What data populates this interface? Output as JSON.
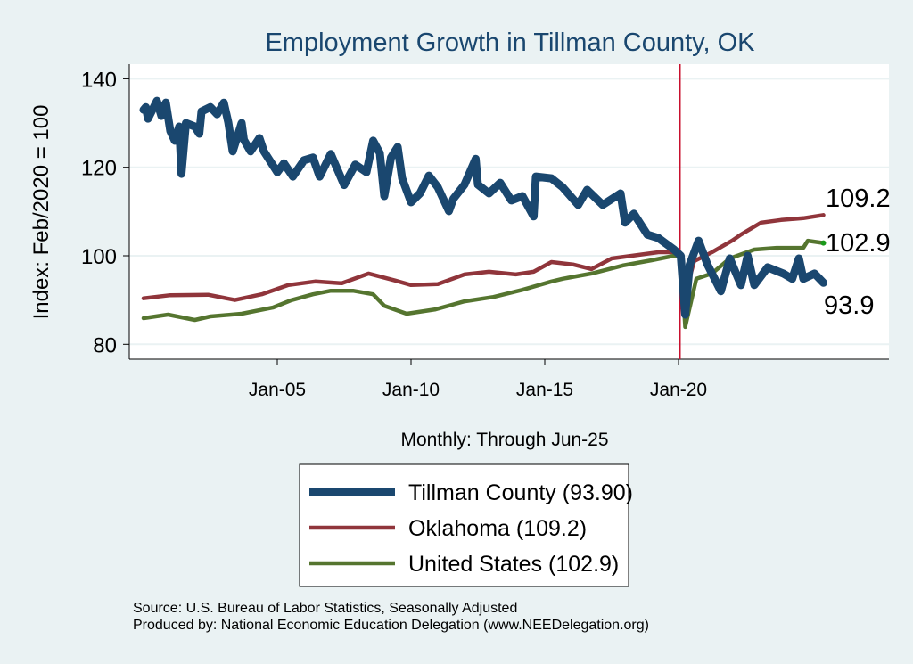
{
  "chart_data": {
    "type": "line",
    "title": "Employment Growth in Tillman  County, OK",
    "xlabel": "Monthly: Through Jun-25",
    "ylabel": "Index: Feb/2020 = 100",
    "ylim": [
      77,
      143
    ],
    "xlim": [
      "1999-06",
      "2028-02"
    ],
    "yticks": [
      80,
      100,
      120,
      140
    ],
    "xticks": [
      {
        "date": "2005-01",
        "label": "Jan-05"
      },
      {
        "date": "2010-01",
        "label": "Jan-10"
      },
      {
        "date": "2015-01",
        "label": "Jan-15"
      },
      {
        "date": "2020-01",
        "label": "Jan-20"
      }
    ],
    "grid": true,
    "reference_line": {
      "date": "2020-02",
      "color": "#c8102e"
    },
    "legend_position": "bottom",
    "series": [
      {
        "name": "Tillman  County (93.90)",
        "end_label": "93.9",
        "color": "#1a476f",
        "points": [
          [
            "2000-01",
            133.0
          ],
          [
            "2000-02",
            133.6
          ],
          [
            "2000-03",
            131.0
          ],
          [
            "2000-07",
            135.0
          ],
          [
            "2000-09",
            131.6
          ],
          [
            "2000-11",
            134.6
          ],
          [
            "2001-01",
            128.2
          ],
          [
            "2001-03",
            126.0
          ],
          [
            "2001-05",
            129.2
          ],
          [
            "2001-06",
            118.5
          ],
          [
            "2001-08",
            130.0
          ],
          [
            "2001-12",
            129.2
          ],
          [
            "2002-02",
            127.6
          ],
          [
            "2002-03",
            132.6
          ],
          [
            "2002-07",
            133.6
          ],
          [
            "2002-10",
            132.0
          ],
          [
            "2003-01",
            134.6
          ],
          [
            "2003-03",
            130.2
          ],
          [
            "2003-05",
            123.6
          ],
          [
            "2003-09",
            130.0
          ],
          [
            "2003-10",
            126.2
          ],
          [
            "2004-01",
            123.6
          ],
          [
            "2004-05",
            126.6
          ],
          [
            "2004-07",
            123.6
          ],
          [
            "2005-01",
            118.9
          ],
          [
            "2005-04",
            120.9
          ],
          [
            "2005-08",
            117.9
          ],
          [
            "2006-01",
            121.6
          ],
          [
            "2006-05",
            122.2
          ],
          [
            "2006-08",
            117.9
          ],
          [
            "2007-01",
            123.0
          ],
          [
            "2007-07",
            116.0
          ],
          [
            "2007-12",
            120.6
          ],
          [
            "2008-05",
            118.9
          ],
          [
            "2008-08",
            126.0
          ],
          [
            "2008-11",
            123.2
          ],
          [
            "2009-01",
            113.5
          ],
          [
            "2009-04",
            122.2
          ],
          [
            "2009-07",
            124.6
          ],
          [
            "2009-09",
            117.5
          ],
          [
            "2010-01",
            112.1
          ],
          [
            "2010-05",
            114.1
          ],
          [
            "2010-09",
            118.1
          ],
          [
            "2011-01",
            115.5
          ],
          [
            "2011-06",
            110.1
          ],
          [
            "2011-08",
            112.9
          ],
          [
            "2012-01",
            116.1
          ],
          [
            "2012-06",
            121.9
          ],
          [
            "2012-07",
            116.1
          ],
          [
            "2012-12",
            114.1
          ],
          [
            "2013-05",
            116.5
          ],
          [
            "2013-10",
            112.5
          ],
          [
            "2014-03",
            113.5
          ],
          [
            "2014-08",
            108.9
          ],
          [
            "2014-09",
            117.9
          ],
          [
            "2015-04",
            117.5
          ],
          [
            "2015-09",
            115.5
          ],
          [
            "2016-04",
            111.5
          ],
          [
            "2016-08",
            114.9
          ],
          [
            "2017-03",
            111.5
          ],
          [
            "2017-11",
            114.1
          ],
          [
            "2018-01",
            107.5
          ],
          [
            "2018-05",
            109.5
          ],
          [
            "2018-11",
            104.8
          ],
          [
            "2019-04",
            104.0
          ],
          [
            "2019-11",
            101.4
          ],
          [
            "2020-02",
            100.0
          ],
          [
            "2020-04",
            86.7
          ],
          [
            "2020-06",
            98.0
          ],
          [
            "2020-10",
            103.4
          ],
          [
            "2021-02",
            98.0
          ],
          [
            "2021-08",
            92.0
          ],
          [
            "2021-12",
            99.4
          ],
          [
            "2022-05",
            93.4
          ],
          [
            "2022-08",
            100.0
          ],
          [
            "2022-11",
            93.4
          ],
          [
            "2023-05",
            97.4
          ],
          [
            "2023-12",
            96.0
          ],
          [
            "2024-04",
            94.8
          ],
          [
            "2024-07",
            99.4
          ],
          [
            "2024-09",
            94.8
          ],
          [
            "2025-02",
            96.0
          ],
          [
            "2025-06",
            93.9
          ]
        ]
      },
      {
        "name": "Oklahoma (109.2)",
        "end_label": "109.2",
        "color": "#90353b",
        "points": [
          [
            "2000-01",
            90.4
          ],
          [
            "2001-01",
            91.1
          ],
          [
            "2002-06",
            91.2
          ],
          [
            "2003-06",
            90.0
          ],
          [
            "2004-06",
            91.3
          ],
          [
            "2005-06",
            93.4
          ],
          [
            "2006-06",
            94.2
          ],
          [
            "2007-06",
            93.8
          ],
          [
            "2008-06",
            96.0
          ],
          [
            "2009-06",
            94.4
          ],
          [
            "2010-01",
            93.4
          ],
          [
            "2011-01",
            93.6
          ],
          [
            "2012-01",
            95.8
          ],
          [
            "2012-12",
            96.4
          ],
          [
            "2013-12",
            95.8
          ],
          [
            "2014-08",
            96.4
          ],
          [
            "2015-04",
            98.6
          ],
          [
            "2016-02",
            98.0
          ],
          [
            "2016-10",
            97.0
          ],
          [
            "2017-07",
            99.4
          ],
          [
            "2018-04",
            100.0
          ],
          [
            "2019-04",
            100.8
          ],
          [
            "2019-11",
            100.8
          ],
          [
            "2020-02",
            100.0
          ],
          [
            "2020-04",
            91.3
          ],
          [
            "2020-08",
            98.8
          ],
          [
            "2021-04",
            100.8
          ],
          [
            "2022-01",
            103.4
          ],
          [
            "2022-05",
            104.8
          ],
          [
            "2023-02",
            107.5
          ],
          [
            "2023-11",
            108.1
          ],
          [
            "2024-09",
            108.5
          ],
          [
            "2025-06",
            109.2
          ]
        ]
      },
      {
        "name": "United States (102.9)",
        "end_label": "102.9",
        "color": "#55752f",
        "points": [
          [
            "2000-01",
            85.9
          ],
          [
            "2000-12",
            86.7
          ],
          [
            "2001-12",
            85.5
          ],
          [
            "2002-07",
            86.3
          ],
          [
            "2003-09",
            86.9
          ],
          [
            "2004-11",
            88.3
          ],
          [
            "2005-07",
            89.9
          ],
          [
            "2006-05",
            91.3
          ],
          [
            "2007-01",
            92.1
          ],
          [
            "2007-11",
            92.1
          ],
          [
            "2008-08",
            91.3
          ],
          [
            "2009-01",
            88.7
          ],
          [
            "2009-11",
            86.9
          ],
          [
            "2010-12",
            87.9
          ],
          [
            "2012-01",
            89.7
          ],
          [
            "2013-02",
            90.7
          ],
          [
            "2014-03",
            92.3
          ],
          [
            "2015-04",
            94.2
          ],
          [
            "2015-09",
            94.8
          ],
          [
            "2016-10",
            96.0
          ],
          [
            "2017-12",
            97.8
          ],
          [
            "2019-01",
            99.0
          ],
          [
            "2019-11",
            100.0
          ],
          [
            "2020-02",
            100.0
          ],
          [
            "2020-04",
            83.9
          ],
          [
            "2020-09",
            94.8
          ],
          [
            "2021-04",
            96.0
          ],
          [
            "2021-12",
            99.4
          ],
          [
            "2022-11",
            101.4
          ],
          [
            "2023-09",
            101.8
          ],
          [
            "2024-09",
            101.8
          ],
          [
            "2024-11",
            103.4
          ],
          [
            "2025-06",
            102.9
          ]
        ]
      }
    ]
  },
  "footer": {
    "source": "Source: U.S. Bureau of Labor Statistics, Seasonally Adjusted",
    "produced": "Produced by: National Economic Education Delegation (www.NEEDelegation.org)"
  }
}
